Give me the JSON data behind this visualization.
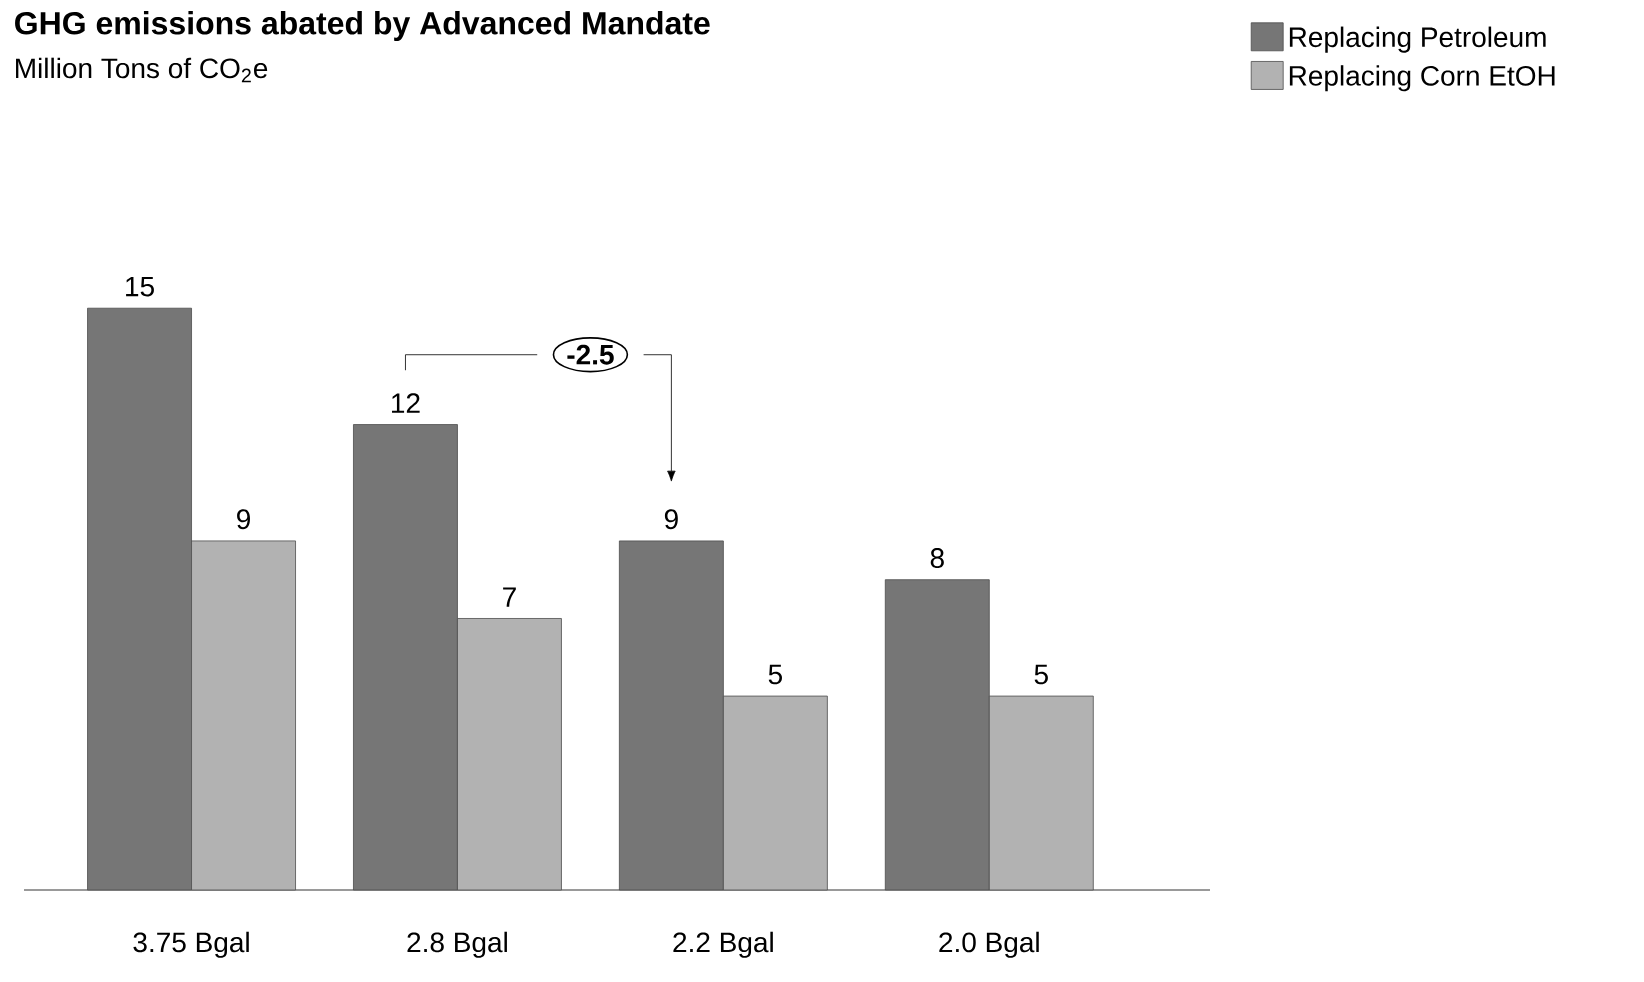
{
  "chart_data": {
    "type": "bar",
    "title": "GHG emissions abated by Advanced Mandate",
    "subtitle": "Million Tons of CO$_{2}$e",
    "categories": [
      "3.75 Bgal",
      "2.8 Bgal",
      "2.2 Bgal",
      "2.0 Bgal"
    ],
    "series": [
      {
        "name": "Replacing Petroleum",
        "color": "#767676",
        "values": [
          15,
          12,
          9,
          8
        ]
      },
      {
        "name": "Replacing Corn EtOH",
        "color": "#b2b2b2",
        "values": [
          9,
          7,
          5,
          5
        ]
      }
    ],
    "data_labels": true,
    "legend": "top right",
    "annotations": [
      "-2.5"
    ]
  }
}
